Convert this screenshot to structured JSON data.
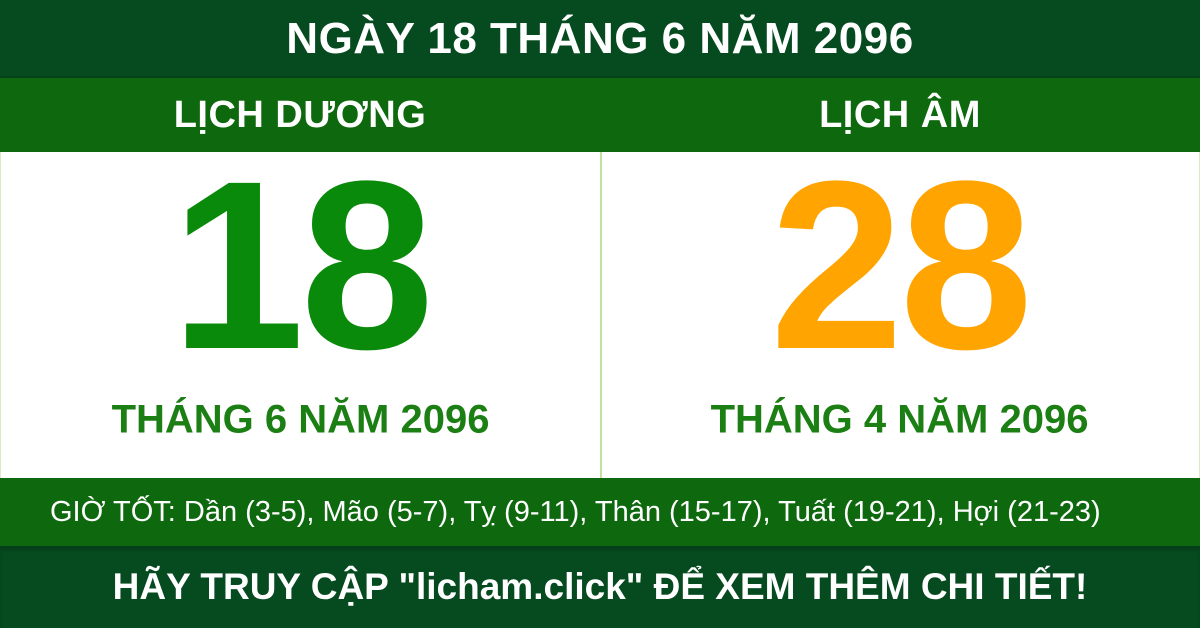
{
  "page": {
    "title": "NGÀY 18 THÁNG 6 NĂM 2096"
  },
  "calendars": {
    "solar": {
      "header": "LỊCH DƯƠNG",
      "day": "18",
      "month_year": "THÁNG 6 NĂM 2096"
    },
    "lunar": {
      "header": "LỊCH ÂM",
      "day": "28",
      "month_year": "THÁNG 4 NĂM 2096"
    }
  },
  "good_hours": {
    "label": "GIỜ TỐT",
    "full_text": "GIỜ TỐT: Dần (3-5), Mão (5-7), Tỵ (9-11), Thân (15-17), Tuất (19-21), Hợi (21-23)",
    "hours": [
      {
        "name": "Dần",
        "range": "3-5"
      },
      {
        "name": "Mão",
        "range": "5-7"
      },
      {
        "name": "Tỵ",
        "range": "9-11"
      },
      {
        "name": "Thân",
        "range": "15-17"
      },
      {
        "name": "Tuất",
        "range": "19-21"
      },
      {
        "name": "Hợi",
        "range": "21-23"
      }
    ]
  },
  "footer": {
    "cta": "HÃY TRUY CẬP \"licham.click\" ĐỂ XEM THÊM CHI TIẾT!",
    "site": "licham.click"
  },
  "colors": {
    "dark_green": "#064a1f",
    "medium_green": "#0e690e",
    "solar_day_green": "#0a8a0a",
    "month_text_green": "#1b7f14",
    "lunar_day_orange": "#ffa400",
    "divider_light_green": "#bfe39a",
    "text_white": "#ffffff"
  }
}
